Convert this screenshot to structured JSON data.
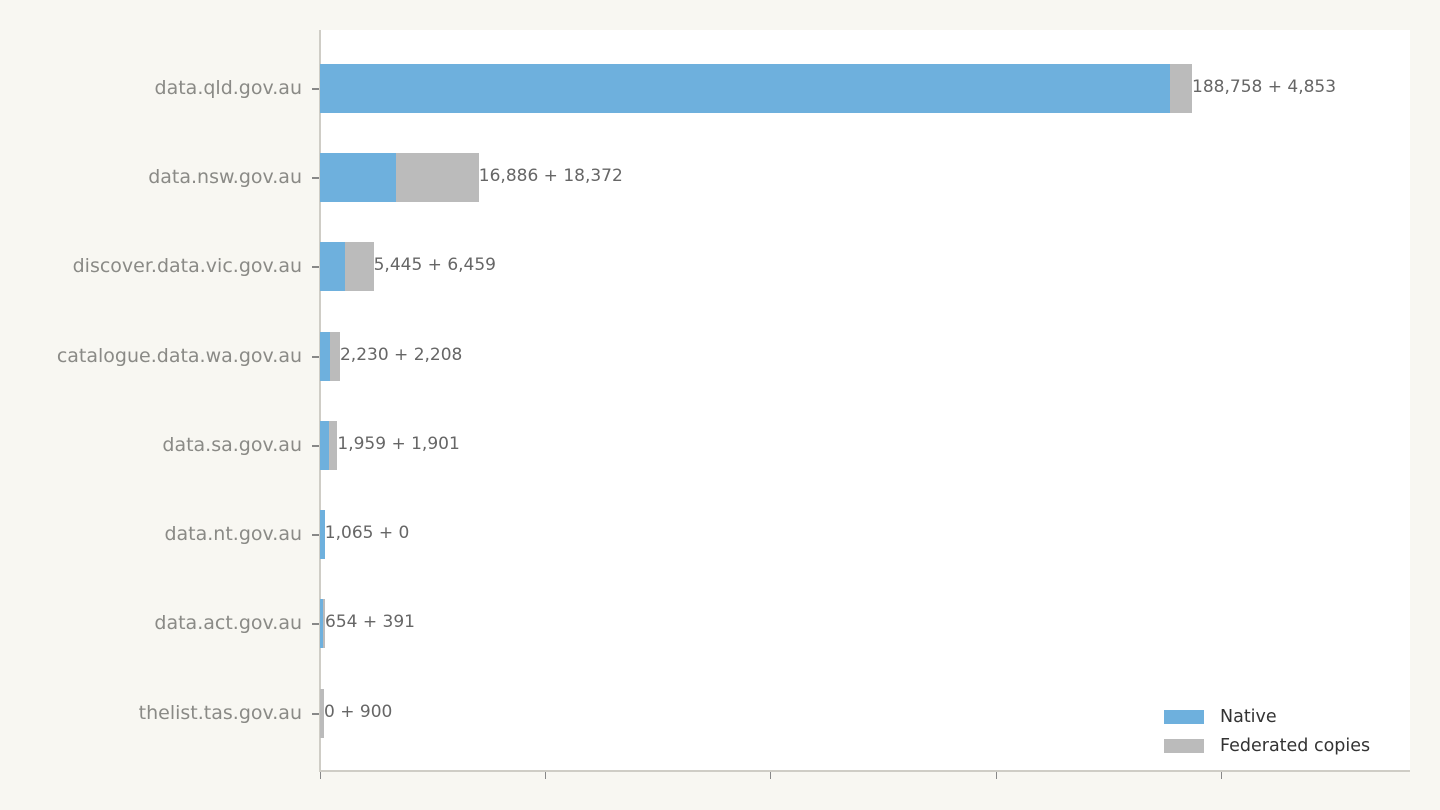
{
  "chart_data": {
    "type": "bar",
    "orientation": "horizontal",
    "stacked": true,
    "title": "",
    "xlabel": "",
    "ylabel": "",
    "categories": [
      "data.qld.gov.au",
      "data.nsw.gov.au",
      "discover.data.vic.gov.au",
      "catalogue.data.wa.gov.au",
      "data.sa.gov.au",
      "data.nt.gov.au",
      "data.act.gov.au",
      "thelist.tas.gov.au"
    ],
    "series": [
      {
        "name": "Native",
        "color": "#6eb0dd",
        "values": [
          188758,
          16886,
          5445,
          2230,
          1959,
          1065,
          654,
          0
        ]
      },
      {
        "name": "Federated copies",
        "color": "#bbbbbb",
        "values": [
          4853,
          18372,
          6459,
          2208,
          1901,
          0,
          391,
          900
        ]
      }
    ],
    "bar_labels": [
      "188,758 + 4,853",
      "16,886 + 18,372",
      "5,445 + 6,459",
      "2,230 + 2,208",
      "1,959 + 1,901",
      "1,065 + 0",
      "654 + 391",
      "0 + 900"
    ],
    "xlim": [
      0,
      242000
    ],
    "xticks": [
      0,
      50000,
      100000,
      150000,
      200000
    ],
    "xtick_labels_visible": false,
    "grid": false,
    "legend_position": "lower right"
  },
  "legend": {
    "native": "Native",
    "federated": "Federated copies"
  }
}
